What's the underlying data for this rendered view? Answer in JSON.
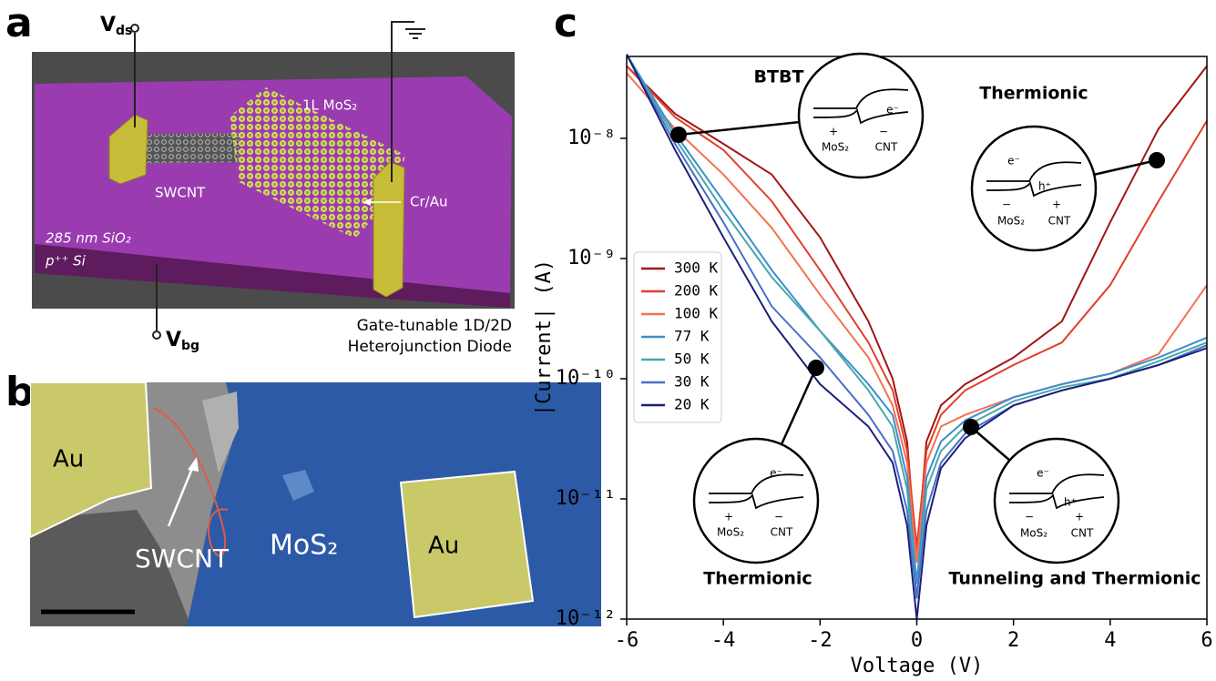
{
  "panel_a": {
    "label": "a",
    "v_ds": {
      "main": "V",
      "sub": "ds"
    },
    "mos2": "1L MoS₂",
    "swcnt": "SWCNT",
    "contact": "Cr/Au",
    "oxide": "285 nm SiO₂",
    "substrate": "p⁺⁺ Si",
    "v_bg": {
      "main": "V",
      "sub": "bg"
    },
    "caption": [
      "Gate-tunable 1D/2D",
      "Heterojunction Diode"
    ]
  },
  "panel_b": {
    "label": "b",
    "au_left": "Au",
    "au_right": "Au",
    "swcnt": "SWCNT",
    "mos2": "MoS₂"
  },
  "chart_data": {
    "type": "line",
    "label": "c",
    "xlabel": "Voltage (V)",
    "ylabel": "|Current| (A)",
    "log_y": true,
    "legend": "center left",
    "xlim": [
      -6,
      6
    ],
    "ylim": [
      1e-12,
      4.8e-08
    ],
    "xticks": [
      -6,
      -4,
      -2,
      0,
      2,
      4,
      6
    ],
    "yticks": [
      {
        "value": 1e-12,
        "label": "10⁻¹²"
      },
      {
        "value": 1e-11,
        "label": "10⁻¹¹"
      },
      {
        "value": 1e-10,
        "label": "10⁻¹⁰"
      },
      {
        "value": 1e-09,
        "label": "10⁻⁹"
      },
      {
        "value": 1e-08,
        "label": "10⁻⁸"
      }
    ],
    "x": [
      -6,
      -5,
      -4,
      -3,
      -2,
      -1,
      -0.5,
      -0.2,
      0,
      0.2,
      0.5,
      1,
      2,
      3,
      4,
      5,
      6
    ],
    "series": [
      {
        "name": "300 K",
        "color": "#a31515",
        "values": [
          4e-08,
          1.6e-08,
          9e-09,
          5e-09,
          1.5e-09,
          3e-10,
          1e-10,
          3e-11,
          3e-12,
          3e-11,
          6e-11,
          9e-11,
          1.5e-10,
          3e-10,
          2e-09,
          1.2e-08,
          4e-08
        ]
      },
      {
        "name": "200 K",
        "color": "#e0402a",
        "values": [
          4e-08,
          1.5e-08,
          8e-09,
          3e-09,
          8e-10,
          2e-10,
          8e-11,
          2.5e-11,
          4e-12,
          2.5e-11,
          5e-11,
          8e-11,
          1.3e-10,
          2e-10,
          6e-10,
          3e-09,
          1.4e-08
        ]
      },
      {
        "name": "100 K",
        "color": "#f4714f",
        "values": [
          3.5e-08,
          1.2e-08,
          5e-09,
          1.8e-09,
          5e-10,
          1.5e-10,
          6e-11,
          2e-11,
          3e-12,
          2e-11,
          4e-11,
          5e-11,
          7e-11,
          9e-11,
          1.1e-10,
          1.6e-10,
          6e-10
        ]
      },
      {
        "name": "77 K",
        "color": "#3a8fd0",
        "values": [
          5e-08,
          1.1e-08,
          3e-09,
          8e-10,
          2.5e-10,
          9e-11,
          5e-11,
          1.5e-11,
          2e-12,
          1.5e-11,
          3e-11,
          4.5e-11,
          7e-11,
          9e-11,
          1.1e-10,
          1.5e-10,
          2.2e-10
        ]
      },
      {
        "name": "50 K",
        "color": "#4aa8a8",
        "values": [
          5e-08,
          1e-08,
          2.5e-09,
          7e-10,
          2.5e-10,
          8e-11,
          4e-11,
          1.2e-11,
          1.5e-12,
          1.2e-11,
          2.5e-11,
          4e-11,
          6.5e-11,
          8.5e-11,
          1e-10,
          1.4e-10,
          2e-10
        ]
      },
      {
        "name": "30 K",
        "color": "#4a6fc8",
        "values": [
          5e-08,
          9e-09,
          2e-09,
          4e-10,
          1.5e-10,
          5e-11,
          2.5e-11,
          8e-12,
          1.5e-12,
          8e-12,
          2e-11,
          3.5e-11,
          6e-11,
          8e-11,
          1e-10,
          1.3e-10,
          1.9e-10
        ]
      },
      {
        "name": "20 K",
        "color": "#1a1f7a",
        "values": [
          5e-08,
          8e-09,
          1.5e-09,
          3e-10,
          9e-11,
          4e-11,
          2e-11,
          6e-12,
          1e-12,
          6e-12,
          1.8e-11,
          3.2e-11,
          6e-11,
          8e-11,
          1e-10,
          1.3e-10,
          1.8e-10
        ]
      }
    ],
    "annotations": [
      "BTBT",
      "Thermionic",
      "Thermionic",
      "Tunneling and Thermionic"
    ],
    "insets": [
      {
        "labels": [
          "e⁻",
          "+",
          "MoS₂",
          "−",
          "CNT"
        ]
      },
      {
        "labels": [
          "e⁻",
          "h⁺",
          "−",
          "MoS₂",
          "+",
          "CNT"
        ]
      },
      {
        "labels": [
          "e⁻",
          "+",
          "MoS₂",
          "−",
          "CNT"
        ]
      },
      {
        "labels": [
          "e⁻",
          "h⁺",
          "−",
          "MoS₂",
          "+",
          "CNT"
        ]
      }
    ]
  }
}
